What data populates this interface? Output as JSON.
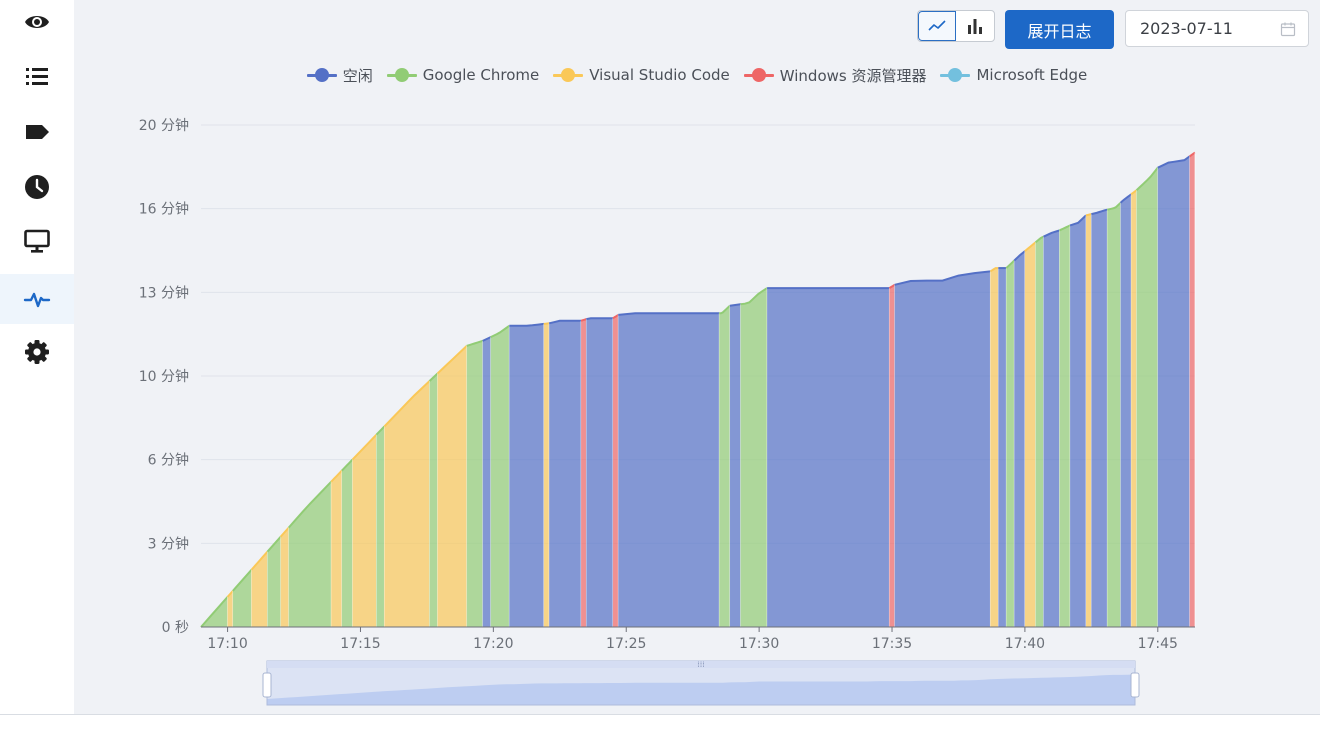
{
  "sidebar": {
    "items": [
      {
        "name": "eye-icon"
      },
      {
        "name": "list-icon"
      },
      {
        "name": "tag-icon"
      },
      {
        "name": "clock-icon"
      },
      {
        "name": "monitor-icon"
      },
      {
        "name": "activity-icon",
        "active": true
      },
      {
        "name": "gear-icon"
      }
    ]
  },
  "toolbar": {
    "line_icon": "line-chart-icon",
    "bar_icon": "bar-chart-icon",
    "expand_log_label": "展开日志",
    "date_value": "2023-07-11",
    "calendar_icon": "calendar-icon"
  },
  "chart_data": {
    "type": "area",
    "legend": [
      {
        "name": "空闲",
        "color": "#5470c6"
      },
      {
        "name": "Google Chrome",
        "color": "#91cc75"
      },
      {
        "name": "Visual Studio Code",
        "color": "#fac858"
      },
      {
        "name": "Windows 资源管理器",
        "color": "#ee6666"
      },
      {
        "name": "Microsoft Edge",
        "color": "#73c0de"
      }
    ],
    "legend_position": "top-center",
    "x_ticks": [
      "17:10",
      "17:15",
      "17:20",
      "17:25",
      "17:30",
      "17:35",
      "17:40",
      "17:45"
    ],
    "y_ticks": [
      "0 秒",
      "3 分钟",
      "6 分钟",
      "10 分钟",
      "13 分钟",
      "16 分钟",
      "20 分钟"
    ],
    "x_range_min": [
      9.0,
      46.4
    ],
    "y_range_min": [
      0,
      20
    ],
    "grid": true,
    "cumulative_points": [
      [
        9.0,
        0.0
      ],
      [
        10.0,
        1.2
      ],
      [
        11.0,
        2.4
      ],
      [
        12.0,
        3.6
      ],
      [
        13.0,
        4.8
      ],
      [
        14.0,
        5.9
      ],
      [
        15.0,
        7.0
      ],
      [
        16.0,
        8.1
      ],
      [
        17.0,
        9.2
      ],
      [
        18.0,
        10.2
      ],
      [
        19.0,
        11.2
      ],
      [
        19.6,
        11.4
      ],
      [
        20.2,
        11.7
      ],
      [
        20.6,
        12.0
      ],
      [
        21.3,
        12.0
      ],
      [
        22.1,
        12.1
      ],
      [
        22.5,
        12.2
      ],
      [
        23.3,
        12.2
      ],
      [
        23.6,
        12.3
      ],
      [
        24.5,
        12.3
      ],
      [
        24.8,
        12.5
      ],
      [
        27.6,
        12.5
      ],
      [
        28.6,
        12.5
      ],
      [
        28.9,
        12.8
      ],
      [
        29.6,
        12.9
      ],
      [
        30.0,
        13.3
      ],
      [
        30.3,
        13.5
      ],
      [
        34.9,
        13.5
      ],
      [
        35.2,
        13.7
      ],
      [
        35.8,
        13.8
      ],
      [
        36.9,
        13.8
      ],
      [
        37.1,
        14.0
      ],
      [
        37.6,
        14.0
      ],
      [
        38.0,
        14.1
      ],
      [
        38.6,
        14.1
      ],
      [
        38.9,
        14.3
      ],
      [
        39.3,
        14.3
      ],
      [
        39.8,
        14.8
      ],
      [
        40.6,
        15.5
      ],
      [
        41.0,
        15.7
      ],
      [
        41.3,
        15.8
      ],
      [
        41.7,
        16.0
      ],
      [
        42.0,
        16.1
      ],
      [
        42.3,
        16.4
      ],
      [
        42.7,
        16.5
      ],
      [
        43.0,
        16.6
      ],
      [
        43.4,
        16.7
      ],
      [
        43.7,
        17.0
      ],
      [
        44.2,
        17.4
      ],
      [
        44.7,
        17.9
      ],
      [
        45.0,
        18.3
      ],
      [
        45.4,
        18.5
      ],
      [
        46.0,
        18.6
      ],
      [
        46.4,
        18.9
      ]
    ],
    "segments": [
      {
        "from": 9.0,
        "to": 10.0,
        "series": "Google Chrome"
      },
      {
        "from": 10.0,
        "to": 10.2,
        "series": "Visual Studio Code"
      },
      {
        "from": 10.2,
        "to": 10.9,
        "series": "Google Chrome"
      },
      {
        "from": 10.9,
        "to": 11.5,
        "series": "Visual Studio Code"
      },
      {
        "from": 11.5,
        "to": 12.0,
        "series": "Google Chrome"
      },
      {
        "from": 12.0,
        "to": 12.3,
        "series": "Visual Studio Code"
      },
      {
        "from": 12.3,
        "to": 13.9,
        "series": "Google Chrome"
      },
      {
        "from": 13.9,
        "to": 14.3,
        "series": "Visual Studio Code"
      },
      {
        "from": 14.3,
        "to": 14.7,
        "series": "Google Chrome"
      },
      {
        "from": 14.7,
        "to": 15.6,
        "series": "Visual Studio Code"
      },
      {
        "from": 15.6,
        "to": 15.9,
        "series": "Google Chrome"
      },
      {
        "from": 15.9,
        "to": 17.6,
        "series": "Visual Studio Code"
      },
      {
        "from": 17.6,
        "to": 17.9,
        "series": "Google Chrome"
      },
      {
        "from": 17.9,
        "to": 19.0,
        "series": "Visual Studio Code"
      },
      {
        "from": 19.0,
        "to": 19.6,
        "series": "Google Chrome"
      },
      {
        "from": 19.6,
        "to": 19.9,
        "series": "空闲"
      },
      {
        "from": 19.9,
        "to": 20.6,
        "series": "Google Chrome"
      },
      {
        "from": 20.6,
        "to": 21.9,
        "series": "空闲"
      },
      {
        "from": 21.9,
        "to": 22.1,
        "series": "Visual Studio Code"
      },
      {
        "from": 22.1,
        "to": 23.3,
        "series": "空闲"
      },
      {
        "from": 23.3,
        "to": 23.5,
        "series": "Windows 资源管理器"
      },
      {
        "from": 23.5,
        "to": 24.5,
        "series": "空闲"
      },
      {
        "from": 24.5,
        "to": 24.7,
        "series": "Windows 资源管理器"
      },
      {
        "from": 24.7,
        "to": 28.5,
        "series": "空闲"
      },
      {
        "from": 28.5,
        "to": 28.9,
        "series": "Google Chrome"
      },
      {
        "from": 28.9,
        "to": 29.3,
        "series": "空闲"
      },
      {
        "from": 29.3,
        "to": 30.3,
        "series": "Google Chrome"
      },
      {
        "from": 30.3,
        "to": 34.9,
        "series": "空闲"
      },
      {
        "from": 34.9,
        "to": 35.1,
        "series": "Windows 资源管理器"
      },
      {
        "from": 35.1,
        "to": 38.7,
        "series": "空闲"
      },
      {
        "from": 38.7,
        "to": 39.0,
        "series": "Visual Studio Code"
      },
      {
        "from": 39.0,
        "to": 39.3,
        "series": "空闲"
      },
      {
        "from": 39.3,
        "to": 39.6,
        "series": "Google Chrome"
      },
      {
        "from": 39.6,
        "to": 40.0,
        "series": "空闲"
      },
      {
        "from": 40.0,
        "to": 40.4,
        "series": "Visual Studio Code"
      },
      {
        "from": 40.4,
        "to": 40.7,
        "series": "Google Chrome"
      },
      {
        "from": 40.7,
        "to": 41.3,
        "series": "空闲"
      },
      {
        "from": 41.3,
        "to": 41.7,
        "series": "Google Chrome"
      },
      {
        "from": 41.7,
        "to": 42.3,
        "series": "空闲"
      },
      {
        "from": 42.3,
        "to": 42.5,
        "series": "Visual Studio Code"
      },
      {
        "from": 42.5,
        "to": 43.1,
        "series": "空闲"
      },
      {
        "from": 43.1,
        "to": 43.6,
        "series": "Google Chrome"
      },
      {
        "from": 43.6,
        "to": 44.0,
        "series": "空闲"
      },
      {
        "from": 44.0,
        "to": 44.2,
        "series": "Visual Studio Code"
      },
      {
        "from": 44.2,
        "to": 45.0,
        "series": "Google Chrome"
      },
      {
        "from": 45.0,
        "to": 46.2,
        "series": "空闲"
      },
      {
        "from": 46.2,
        "to": 46.4,
        "series": "Windows 资源管理器"
      }
    ],
    "data_zoom": {
      "start_percent": 0,
      "end_percent": 100
    }
  }
}
